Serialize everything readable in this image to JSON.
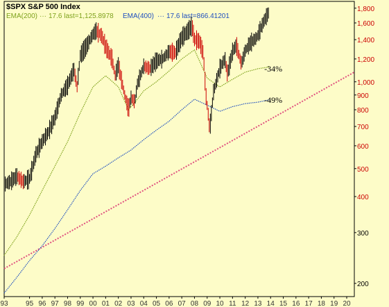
{
  "chart_data": {
    "type": "line",
    "title": "$SPX S&P 500 Index",
    "scale": "log",
    "grid": false,
    "ylim": [
      180,
      1900
    ],
    "xlim": [
      1993,
      2020.6
    ],
    "x_ticks": [
      "93",
      "95",
      "96",
      "97",
      "98",
      "99",
      "00",
      "01",
      "02",
      "03",
      "04",
      "05",
      "06",
      "07",
      "08",
      "09",
      "10",
      "11",
      "12",
      "13",
      "14",
      "15",
      "16",
      "17",
      "18",
      "19",
      "20"
    ],
    "x_tick_years": [
      1993,
      1995,
      1996,
      1997,
      1998,
      1999,
      2000,
      2001,
      2002,
      2003,
      2004,
      2005,
      2006,
      2007,
      2008,
      2009,
      2010,
      2011,
      2012,
      2013,
      2014,
      2015,
      2016,
      2017,
      2018,
      2019,
      2020
    ],
    "y_ticks": [
      {
        "label": "1,800",
        "value": 1800,
        "color": "#cc0000"
      },
      {
        "label": "1,600",
        "value": 1600,
        "color": "#cc0000"
      },
      {
        "label": "1,400",
        "value": 1400,
        "color": "#cc0000"
      },
      {
        "label": "1,200",
        "value": 1200,
        "color": "#cc0000"
      },
      {
        "label": "1,000",
        "value": 1000,
        "color": "#cc0000"
      },
      {
        "label": "900",
        "value": 900,
        "color": "#cc0000"
      },
      {
        "label": "800",
        "value": 800,
        "color": "#cc0000"
      },
      {
        "label": "700",
        "value": 700,
        "color": "#cc0000"
      },
      {
        "label": "600",
        "value": 600,
        "color": "#cc0000"
      },
      {
        "label": "500",
        "value": 500,
        "color": "#cc0000"
      },
      {
        "label": "400",
        "value": 400,
        "color": "#cc0000"
      },
      {
        "label": "300",
        "value": 300,
        "color": "#000000"
      },
      {
        "label": "200",
        "value": 200,
        "color": "#000000"
      }
    ],
    "legend": {
      "ema200_label": "EMA(200)",
      "ema200_text": "17.6 last=1,125.8978",
      "ema400_label": "EMA(400)",
      "ema400_text": "17.6 last=866.41201"
    },
    "annotations": [
      {
        "text": "-34%",
        "x": 2013.5,
        "y": 1110
      },
      {
        "text": "-49%",
        "x": 2013.5,
        "y": 865
      }
    ],
    "price": {
      "name": "$SPX",
      "x": [
        1993.0,
        1993.5,
        1994.0,
        1994.5,
        1995.0,
        1995.5,
        1996.0,
        1996.5,
        1997.0,
        1997.5,
        1998.0,
        1998.5,
        1998.75,
        1999.0,
        1999.5,
        2000.0,
        2000.25,
        2000.7,
        2001.0,
        2001.5,
        2001.75,
        2002.0,
        2002.5,
        2002.8,
        2003.0,
        2003.3,
        2003.5,
        2004.0,
        2004.5,
        2005.0,
        2005.5,
        2006.0,
        2006.5,
        2007.0,
        2007.5,
        2007.8,
        2008.0,
        2008.4,
        2008.7,
        2008.9,
        2009.1,
        2009.2,
        2009.5,
        2010.0,
        2010.4,
        2010.6,
        2011.0,
        2011.3,
        2011.7,
        2012.0,
        2012.4,
        2012.9,
        2013.0,
        2013.5,
        2013.9
      ],
      "y": [
        440,
        450,
        470,
        450,
        460,
        560,
        620,
        670,
        750,
        900,
        970,
        1100,
        960,
        1230,
        1330,
        1460,
        1500,
        1440,
        1320,
        1200,
        1050,
        1140,
        900,
        800,
        880,
        850,
        980,
        1130,
        1110,
        1180,
        1200,
        1270,
        1260,
        1420,
        1500,
        1560,
        1400,
        1380,
        1250,
        900,
        760,
        680,
        920,
        1110,
        1200,
        1060,
        1270,
        1340,
        1150,
        1280,
        1360,
        1420,
        1450,
        1630,
        1750
      ]
    },
    "ema200": {
      "name": "EMA(200)",
      "x": [
        1993.0,
        1994,
        1995,
        1996,
        1997,
        1998,
        1999,
        2000,
        2001,
        2002,
        2002.8,
        2003.5,
        2004,
        2005,
        2006,
        2007,
        2008,
        2009,
        2010,
        2011,
        2012,
        2013,
        2013.9
      ],
      "y": [
        250,
        290,
        345,
        420,
        510,
        620,
        780,
        960,
        1050,
        960,
        800,
        870,
        930,
        1000,
        1090,
        1200,
        1290,
        1030,
        960,
        1020,
        1080,
        1110,
        1126
      ]
    },
    "ema400": {
      "name": "EMA(400)",
      "x": [
        1993.0,
        1994,
        1995,
        1996,
        1997,
        1998,
        1999,
        2000,
        2001,
        2002,
        2003,
        2004,
        2005,
        2006,
        2007,
        2008,
        2009,
        2010,
        2011,
        2012,
        2013,
        2013.9
      ],
      "y": [
        185,
        210,
        240,
        270,
        310,
        360,
        420,
        480,
        510,
        545,
        580,
        630,
        680,
        730,
        800,
        870,
        830,
        790,
        820,
        840,
        850,
        866
      ]
    },
    "trendline": {
      "x": [
        1993.0,
        2020.6
      ],
      "y": [
        225,
        1080
      ]
    },
    "colors": {
      "background": "#fdfcc8",
      "price_up": "#000000",
      "price_down": "#cc0000",
      "ema200": "#7fa21c",
      "ema400": "#1f4fbf",
      "trendline": "#e0507f",
      "axis_text": "#333333"
    }
  }
}
